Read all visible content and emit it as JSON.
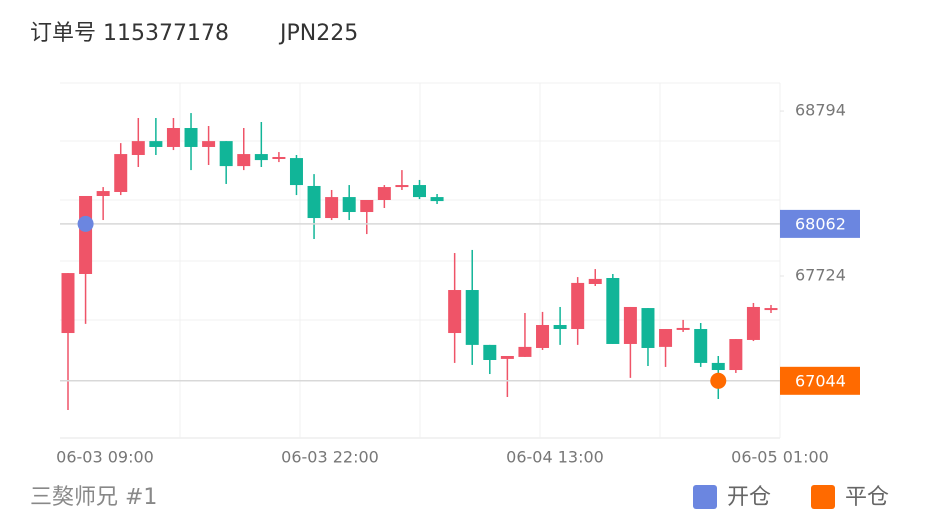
{
  "header": {
    "order": "订单号 115377178",
    "symbol": "JPN225"
  },
  "footer": {
    "author": "三獒师兄 #1"
  },
  "chart_data": {
    "type": "candlestick",
    "up_color": "#ef5468",
    "down_color": "#11b598",
    "open": [
      67354,
      67737,
      68243,
      68269,
      68509,
      68599,
      68561,
      68684,
      68561,
      68599,
      68437,
      68515,
      68483,
      68489,
      68308,
      68100,
      68236,
      68139,
      68217,
      68301,
      68314,
      68236,
      67354,
      67633,
      67277,
      67186,
      67199,
      67257,
      67406,
      67380,
      67672,
      67711,
      67283,
      67516,
      67264,
      67374,
      67380,
      67160,
      67114,
      67309,
      67503
    ],
    "high": [
      67743,
      68243,
      68301,
      68586,
      68749,
      68749,
      68749,
      68781,
      68697,
      68599,
      68684,
      68723,
      68528,
      68509,
      68385,
      68282,
      68314,
      68217,
      68314,
      68411,
      68347,
      68256,
      67873,
      67893,
      67277,
      67205,
      67484,
      67491,
      67523,
      67717,
      67769,
      67737,
      67523,
      67516,
      67380,
      67439,
      67419,
      67205,
      67315,
      67549,
      67536
    ],
    "low": [
      66855,
      67413,
      68087,
      68249,
      68431,
      68509,
      68541,
      68411,
      68444,
      68321,
      68411,
      68431,
      68463,
      68249,
      67964,
      68087,
      68087,
      67996,
      68165,
      68282,
      68223,
      68191,
      67160,
      67147,
      67088,
      66939,
      67199,
      67244,
      67277,
      67277,
      67659,
      67283,
      67063,
      67140,
      67134,
      67361,
      67134,
      66926,
      67095,
      67302,
      67484
    ],
    "close": [
      67743,
      68243,
      68275,
      68515,
      68599,
      68561,
      68684,
      68561,
      68599,
      68437,
      68515,
      68476,
      68496,
      68314,
      68100,
      68236,
      68139,
      68217,
      68301,
      68314,
      68236,
      68210,
      67633,
      67277,
      67179,
      67205,
      67264,
      67406,
      67380,
      67679,
      67705,
      67283,
      67523,
      67257,
      67380,
      67387,
      67160,
      67114,
      67315,
      67523,
      67516
    ],
    "ylim": [
      66673,
      68976
    ],
    "yticks": [
      68794,
      67724
    ],
    "xlabels": [
      "06-03 09:00",
      "06-03 22:00",
      "06-04 13:00",
      "06-05 01:00"
    ],
    "markers": [
      {
        "name": "开仓",
        "value": 68062,
        "x": 1,
        "color": "#6b86e0"
      },
      {
        "name": "平仓",
        "value": 67044,
        "x": 37,
        "color": "#ff6a00"
      }
    ]
  }
}
